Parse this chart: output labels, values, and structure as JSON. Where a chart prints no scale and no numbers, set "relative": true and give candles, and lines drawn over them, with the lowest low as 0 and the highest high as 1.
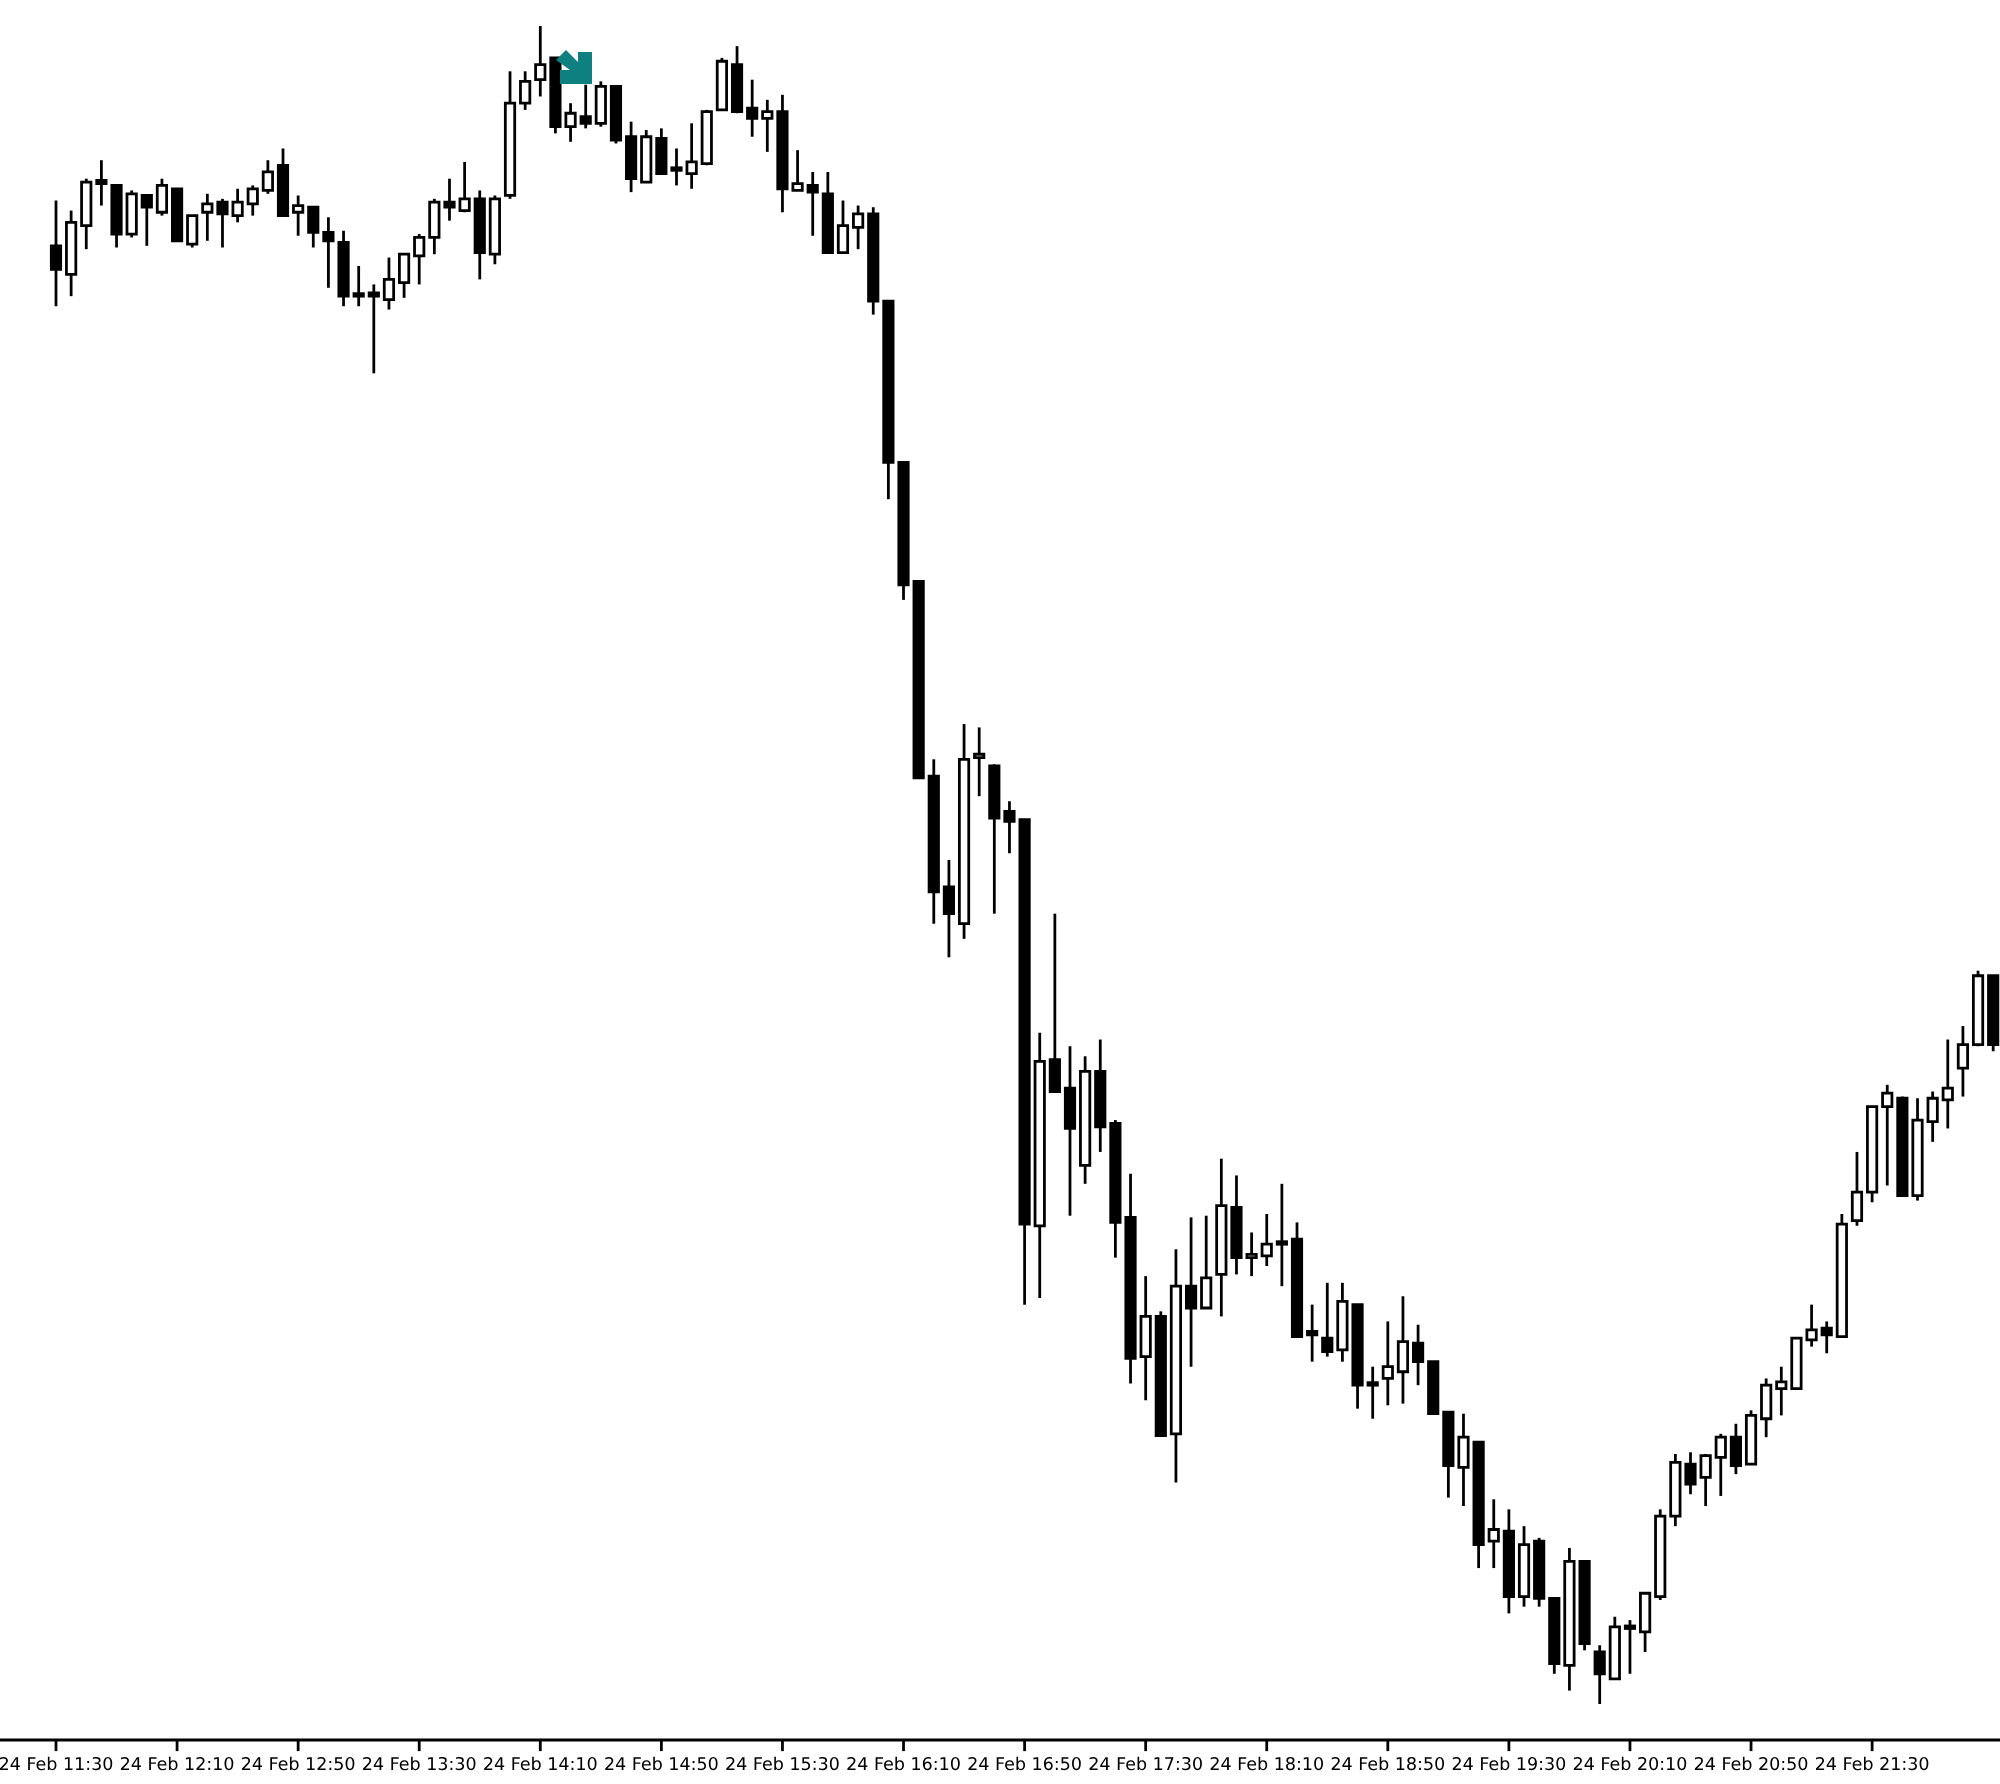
{
  "chart_data": {
    "type": "candlestick",
    "relative": true,
    "categories": [
      "24 Feb 11:30",
      null,
      null,
      null,
      null,
      null,
      null,
      null,
      "24 Feb 12:10",
      null,
      null,
      null,
      null,
      null,
      null,
      null,
      "24 Feb 12:50",
      null,
      null,
      null,
      null,
      null,
      null,
      null,
      "24 Feb 13:30",
      null,
      null,
      null,
      null,
      null,
      null,
      null,
      "24 Feb 14:10",
      null,
      null,
      null,
      null,
      null,
      null,
      null,
      "24 Feb 14:50",
      null,
      null,
      null,
      null,
      null,
      null,
      null,
      "24 Feb 15:30",
      null,
      null,
      null,
      null,
      null,
      null,
      null,
      "24 Feb 16:10",
      null,
      null,
      null,
      null,
      null,
      null,
      null,
      "24 Feb 16:50",
      null,
      null,
      null,
      null,
      null,
      null,
      null,
      "24 Feb 17:30",
      null,
      null,
      null,
      null,
      null,
      null,
      null,
      "24 Feb 18:10",
      null,
      null,
      null,
      null,
      null,
      null,
      null,
      "24 Feb 18:50",
      null,
      null,
      null,
      null,
      null,
      null,
      null,
      "24 Feb 19:30",
      null,
      null,
      null,
      null,
      null,
      null,
      null,
      "24 Feb 20:10",
      null,
      null,
      null,
      null,
      null,
      null,
      null,
      "24 Feb 20:50",
      null,
      null,
      null,
      null,
      null,
      null,
      null,
      "24 Feb 21:30",
      null,
      null,
      null,
      null,
      null,
      null,
      null,
      null
    ],
    "ohlc": [
      [
        0.869,
        0.896,
        0.833,
        0.855
      ],
      [
        0.852,
        0.89,
        0.839,
        0.883
      ],
      [
        0.881,
        0.909,
        0.867,
        0.907
      ],
      [
        0.908,
        0.92,
        0.893,
        0.906
      ],
      [
        0.905,
        0.905,
        0.868,
        0.876
      ],
      [
        0.876,
        0.902,
        0.874,
        0.9
      ],
      [
        0.899,
        0.899,
        0.869,
        0.892
      ],
      [
        0.889,
        0.909,
        0.887,
        0.905
      ],
      [
        0.903,
        0.903,
        0.872,
        0.872
      ],
      [
        0.87,
        0.887,
        0.868,
        0.887
      ],
      [
        0.889,
        0.9,
        0.872,
        0.894
      ],
      [
        0.895,
        0.897,
        0.868,
        0.888
      ],
      [
        0.887,
        0.903,
        0.883,
        0.895
      ],
      [
        0.894,
        0.905,
        0.887,
        0.903
      ],
      [
        0.902,
        0.92,
        0.9,
        0.913
      ],
      [
        0.917,
        0.927,
        0.887,
        0.887
      ],
      [
        0.889,
        0.899,
        0.875,
        0.893
      ],
      [
        0.892,
        0.892,
        0.868,
        0.877
      ],
      [
        0.877,
        0.886,
        0.844,
        0.872
      ],
      [
        0.871,
        0.878,
        0.833,
        0.839
      ],
      [
        0.84,
        0.857,
        0.833,
        0.839
      ],
      [
        0.841,
        0.846,
        0.793,
        0.839
      ],
      [
        0.837,
        0.862,
        0.831,
        0.849
      ],
      [
        0.847,
        0.864,
        0.838,
        0.864
      ],
      [
        0.863,
        0.876,
        0.846,
        0.874
      ],
      [
        0.874,
        0.897,
        0.864,
        0.895
      ],
      [
        0.895,
        0.909,
        0.884,
        0.892
      ],
      [
        0.89,
        0.919,
        0.889,
        0.897
      ],
      [
        0.897,
        0.902,
        0.849,
        0.865
      ],
      [
        0.864,
        0.899,
        0.858,
        0.897
      ],
      [
        0.899,
        0.973,
        0.897,
        0.954
      ],
      [
        0.954,
        0.973,
        0.95,
        0.967
      ],
      [
        0.968,
        1.0,
        0.958,
        0.977
      ],
      [
        0.981,
        0.981,
        0.936,
        0.94
      ],
      [
        0.94,
        0.954,
        0.931,
        0.948
      ],
      [
        0.946,
        0.965,
        0.939,
        0.942
      ],
      [
        0.942,
        0.967,
        0.94,
        0.964
      ],
      [
        0.964,
        0.964,
        0.93,
        0.932
      ],
      [
        0.934,
        0.943,
        0.901,
        0.909
      ],
      [
        0.907,
        0.938,
        0.907,
        0.934
      ],
      [
        0.933,
        0.939,
        0.912,
        0.912
      ],
      [
        0.915,
        0.927,
        0.905,
        0.914
      ],
      [
        0.912,
        0.942,
        0.903,
        0.919
      ],
      [
        0.918,
        0.95,
        0.917,
        0.949
      ],
      [
        0.95,
        0.981,
        0.95,
        0.979
      ],
      [
        0.977,
        0.988,
        0.948,
        0.949
      ],
      [
        0.951,
        0.968,
        0.934,
        0.945
      ],
      [
        0.945,
        0.956,
        0.925,
        0.949
      ],
      [
        0.949,
        0.959,
        0.889,
        0.903
      ],
      [
        0.902,
        0.926,
        0.902,
        0.906
      ],
      [
        0.905,
        0.913,
        0.875,
        0.901
      ],
      [
        0.9,
        0.913,
        0.865,
        0.865
      ],
      [
        0.865,
        0.896,
        0.865,
        0.881
      ],
      [
        0.88,
        0.893,
        0.867,
        0.888
      ],
      [
        0.888,
        0.892,
        0.828,
        0.836
      ],
      [
        0.836,
        0.836,
        0.718,
        0.74
      ],
      [
        0.74,
        0.74,
        0.658,
        0.667
      ],
      [
        0.669,
        0.669,
        0.552,
        0.552
      ],
      [
        0.553,
        0.563,
        0.465,
        0.484
      ],
      [
        0.487,
        0.503,
        0.445,
        0.471
      ],
      [
        0.465,
        0.584,
        0.456,
        0.563
      ],
      [
        0.564,
        0.582,
        0.541,
        0.566
      ],
      [
        0.559,
        0.56,
        0.471,
        0.528
      ],
      [
        0.532,
        0.538,
        0.507,
        0.526
      ],
      [
        0.527,
        0.527,
        0.238,
        0.286
      ],
      [
        0.285,
        0.4,
        0.242,
        0.383
      ],
      [
        0.384,
        0.471,
        0.365,
        0.365
      ],
      [
        0.367,
        0.392,
        0.291,
        0.343
      ],
      [
        0.321,
        0.386,
        0.31,
        0.377
      ],
      [
        0.377,
        0.396,
        0.329,
        0.344
      ],
      [
        0.346,
        0.348,
        0.266,
        0.287
      ],
      [
        0.29,
        0.316,
        0.191,
        0.206
      ],
      [
        0.207,
        0.255,
        0.181,
        0.231
      ],
      [
        0.231,
        0.234,
        0.16,
        0.16
      ],
      [
        0.161,
        0.271,
        0.132,
        0.249
      ],
      [
        0.249,
        0.29,
        0.201,
        0.236
      ],
      [
        0.236,
        0.291,
        0.236,
        0.254
      ],
      [
        0.256,
        0.325,
        0.231,
        0.297
      ],
      [
        0.296,
        0.315,
        0.256,
        0.266
      ],
      [
        0.266,
        0.281,
        0.255,
        0.268
      ],
      [
        0.267,
        0.292,
        0.261,
        0.274
      ],
      [
        0.275,
        0.31,
        0.249,
        0.274
      ],
      [
        0.277,
        0.287,
        0.219,
        0.219
      ],
      [
        0.222,
        0.238,
        0.204,
        0.22
      ],
      [
        0.218,
        0.251,
        0.207,
        0.21
      ],
      [
        0.211,
        0.251,
        0.204,
        0.24
      ],
      [
        0.238,
        0.238,
        0.176,
        0.19
      ],
      [
        0.191,
        0.201,
        0.17,
        0.19
      ],
      [
        0.194,
        0.228,
        0.178,
        0.201
      ],
      [
        0.198,
        0.243,
        0.179,
        0.216
      ],
      [
        0.215,
        0.226,
        0.19,
        0.204
      ],
      [
        0.204,
        0.204,
        0.173,
        0.173
      ],
      [
        0.174,
        0.174,
        0.123,
        0.142
      ],
      [
        0.141,
        0.173,
        0.118,
        0.159
      ],
      [
        0.156,
        0.156,
        0.081,
        0.095
      ],
      [
        0.097,
        0.122,
        0.081,
        0.104
      ],
      [
        0.103,
        0.116,
        0.054,
        0.064
      ],
      [
        0.064,
        0.106,
        0.058,
        0.095
      ],
      [
        0.097,
        0.099,
        0.058,
        0.063
      ],
      [
        0.063,
        0.063,
        0.018,
        0.024
      ],
      [
        0.023,
        0.093,
        0.008,
        0.085
      ],
      [
        0.085,
        0.085,
        0.032,
        0.036
      ],
      [
        0.031,
        0.035,
        0.0,
        0.018
      ],
      [
        0.015,
        0.052,
        0.015,
        0.046
      ],
      [
        0.045,
        0.05,
        0.018,
        0.046
      ],
      [
        0.043,
        0.066,
        0.031,
        0.066
      ],
      [
        0.064,
        0.116,
        0.062,
        0.112
      ],
      [
        0.112,
        0.149,
        0.106,
        0.144
      ],
      [
        0.143,
        0.15,
        0.125,
        0.131
      ],
      [
        0.135,
        0.149,
        0.118,
        0.148
      ],
      [
        0.147,
        0.161,
        0.124,
        0.159
      ],
      [
        0.159,
        0.167,
        0.137,
        0.142
      ],
      [
        0.143,
        0.175,
        0.143,
        0.172
      ],
      [
        0.17,
        0.194,
        0.159,
        0.19
      ],
      [
        0.188,
        0.201,
        0.172,
        0.192
      ],
      [
        0.188,
        0.218,
        0.188,
        0.218
      ],
      [
        0.217,
        0.238,
        0.213,
        0.223
      ],
      [
        0.224,
        0.228,
        0.209,
        0.22
      ],
      [
        0.219,
        0.292,
        0.219,
        0.286
      ],
      [
        0.288,
        0.329,
        0.285,
        0.305
      ],
      [
        0.305,
        0.356,
        0.299,
        0.356
      ],
      [
        0.356,
        0.369,
        0.309,
        0.364
      ],
      [
        0.361,
        0.362,
        0.303,
        0.303
      ],
      [
        0.303,
        0.361,
        0.3,
        0.348
      ],
      [
        0.347,
        0.365,
        0.335,
        0.361
      ],
      [
        0.36,
        0.396,
        0.343,
        0.367
      ],
      [
        0.379,
        0.404,
        0.362,
        0.393
      ],
      [
        0.393,
        0.437,
        0.392,
        0.434
      ],
      [
        0.434,
        0.434,
        0.389,
        0.393
      ]
    ]
  }
}
